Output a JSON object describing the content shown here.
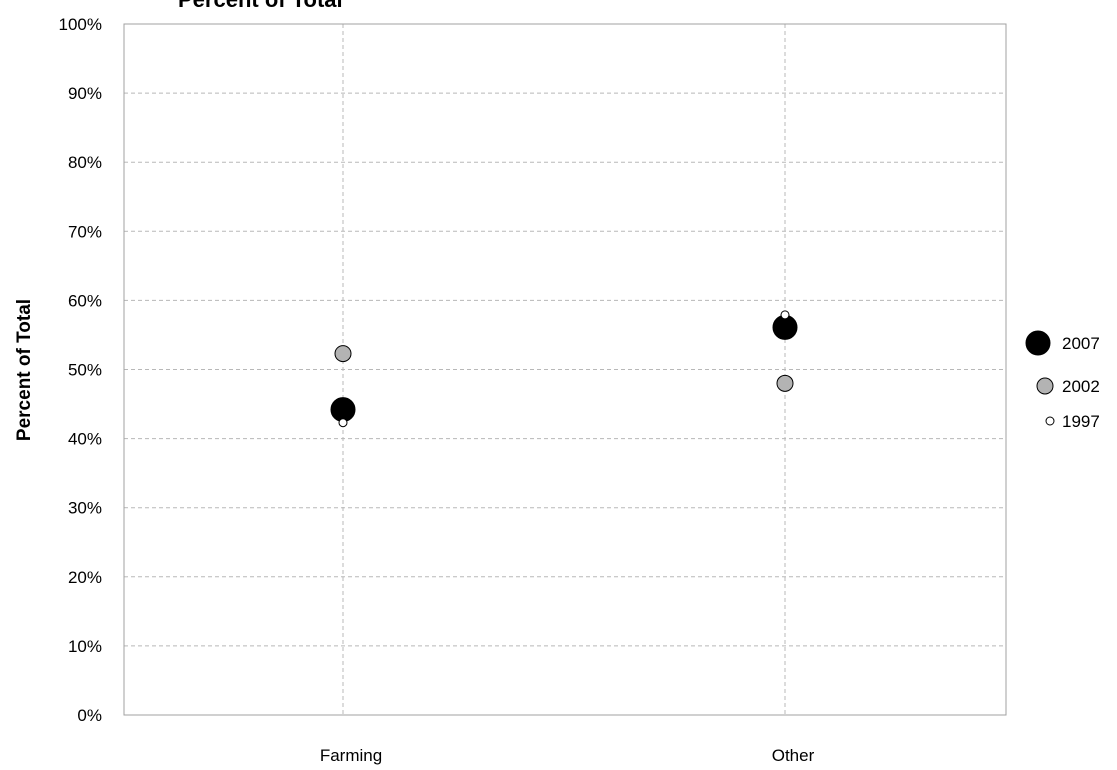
{
  "chart_data": {
    "type": "scatter",
    "title": "Percent of Total",
    "xlabel": "",
    "ylabel": "Percent of Total",
    "categories": [
      "Farming",
      "Other"
    ],
    "ylim": [
      0,
      100
    ],
    "yticks": [
      "0%",
      "10%",
      "20%",
      "30%",
      "40%",
      "50%",
      "60%",
      "70%",
      "80%",
      "90%",
      "100%"
    ],
    "y_tick_values": [
      0,
      10,
      20,
      30,
      40,
      50,
      60,
      70,
      80,
      90,
      100
    ],
    "grid": true,
    "legend_position": "right",
    "series": [
      {
        "name": "2007",
        "values": [
          44.2,
          56.1
        ],
        "color": "#000000",
        "marker": "large-black-circle"
      },
      {
        "name": "2002",
        "values": [
          52.3,
          48.0
        ],
        "color": "#b3b3b3",
        "marker": "medium-gray-circle"
      },
      {
        "name": "1997",
        "values": [
          42.3,
          57.9
        ],
        "color": "#ffffff",
        "marker": "small-white-circle"
      }
    ]
  }
}
